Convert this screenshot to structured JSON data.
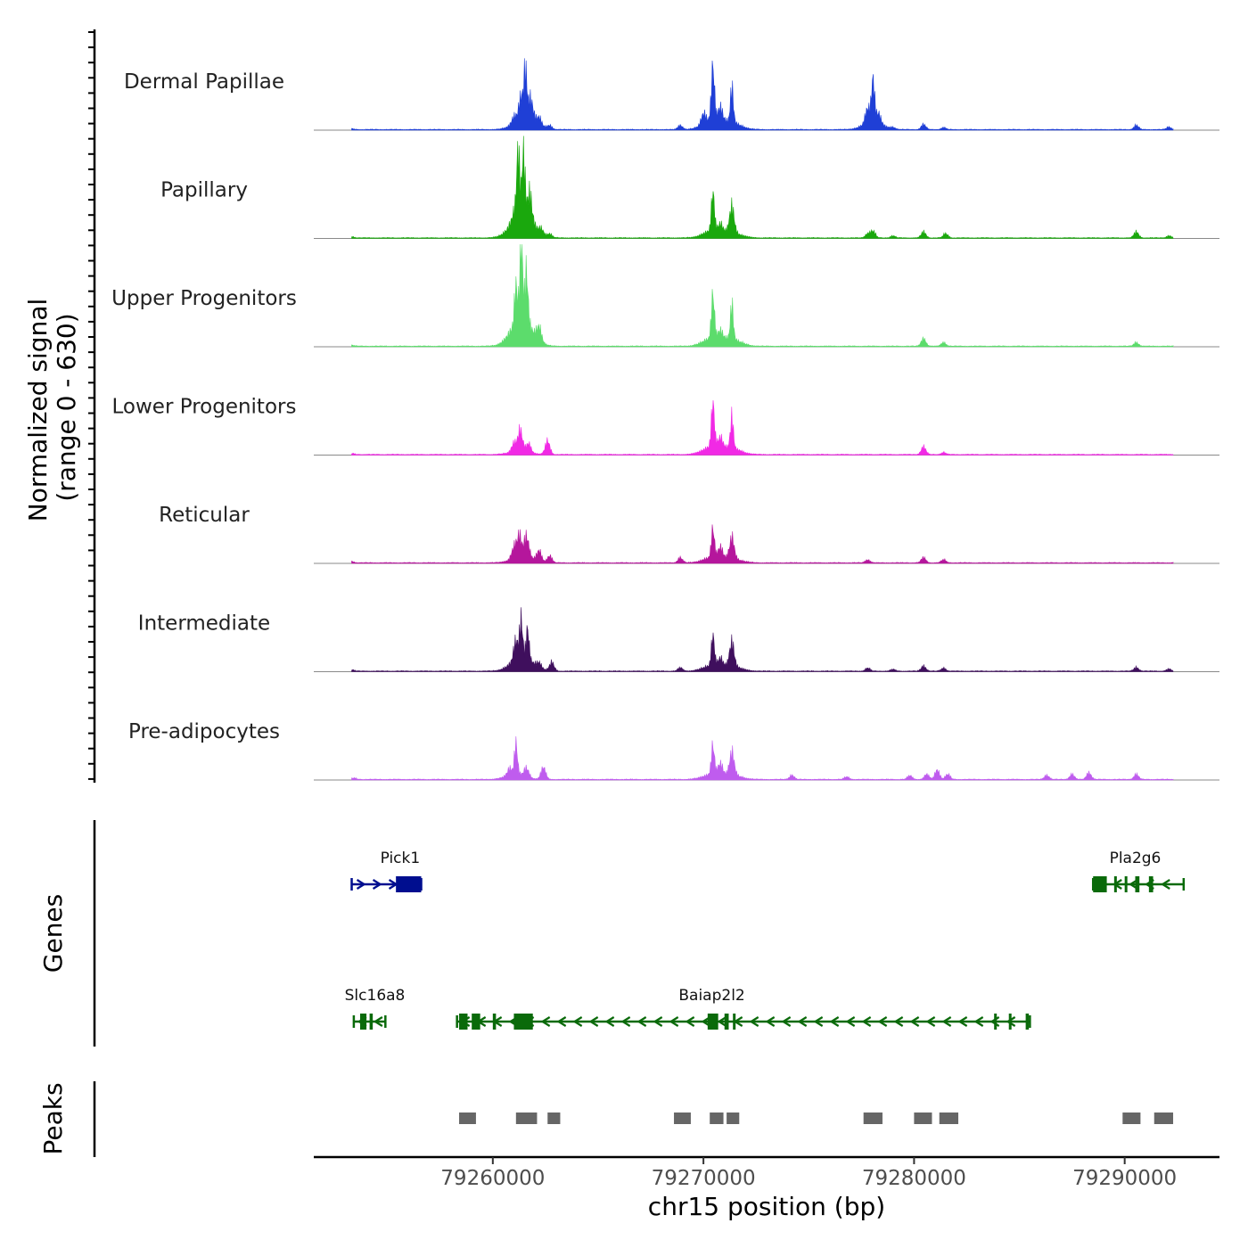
{
  "chart_data": {
    "type": "coverage-track",
    "chromosome": "chr15",
    "x_range": [
      79251500,
      79294500
    ],
    "xlabel": "chr15 position (bp)",
    "x_ticks": [
      79260000,
      79270000,
      79280000,
      79290000
    ],
    "x_tick_labels": [
      "79260000",
      "79270000",
      "79280000",
      "79290000"
    ],
    "signal_panel": {
      "ylabel_line1": "Normalized signal",
      "ylabel_line2": "(range 0 - 630)",
      "y_range": [
        0,
        630
      ]
    },
    "genes_label": "Genes",
    "peaks_label": "Peaks",
    "tracks": [
      {
        "name": "Dermal Papillae",
        "color": "#1f3fd6",
        "peaks": [
          [
            79253300,
            4
          ],
          [
            79261000,
            35
          ],
          [
            79261350,
            120
          ],
          [
            79261550,
            250
          ],
          [
            79261800,
            110
          ],
          [
            79262200,
            40
          ],
          [
            79262700,
            20
          ],
          [
            79268900,
            25
          ],
          [
            79270000,
            60
          ],
          [
            79270450,
            320
          ],
          [
            79270800,
            70
          ],
          [
            79271350,
            200
          ],
          [
            79277800,
            90
          ],
          [
            79278050,
            250
          ],
          [
            79278300,
            60
          ],
          [
            79279000,
            10
          ],
          [
            79280450,
            30
          ],
          [
            79281400,
            12
          ],
          [
            79290550,
            25
          ],
          [
            79292100,
            15
          ]
        ]
      },
      {
        "name": "Papillary",
        "color": "#1aa80d",
        "peaks": [
          [
            79253300,
            8
          ],
          [
            79261000,
            40
          ],
          [
            79261200,
            380
          ],
          [
            79261450,
            370
          ],
          [
            79261750,
            150
          ],
          [
            79262300,
            30
          ],
          [
            79262700,
            20
          ],
          [
            79270450,
            230
          ],
          [
            79270800,
            40
          ],
          [
            79271350,
            150
          ],
          [
            79277800,
            25
          ],
          [
            79278050,
            40
          ],
          [
            79279000,
            12
          ],
          [
            79280450,
            35
          ],
          [
            79281500,
            25
          ],
          [
            79290550,
            35
          ],
          [
            79292100,
            12
          ]
        ]
      },
      {
        "name": "Upper Progenitors",
        "color": "#5cdc6c",
        "peaks": [
          [
            79253300,
            6
          ],
          [
            79261100,
            220
          ],
          [
            79261350,
            460
          ],
          [
            79261600,
            300
          ],
          [
            79262200,
            80
          ],
          [
            79270450,
            260
          ],
          [
            79270800,
            40
          ],
          [
            79271350,
            200
          ],
          [
            79280450,
            45
          ],
          [
            79281400,
            22
          ],
          [
            79290550,
            22
          ]
        ]
      },
      {
        "name": "Lower Progenitors",
        "color": "#f129e5",
        "peaks": [
          [
            79253300,
            6
          ],
          [
            79261000,
            50
          ],
          [
            79261300,
            120
          ],
          [
            79261700,
            50
          ],
          [
            79262600,
            80
          ],
          [
            79270450,
            260
          ],
          [
            79270800,
            50
          ],
          [
            79271350,
            180
          ],
          [
            79280450,
            45
          ],
          [
            79281400,
            12
          ]
        ]
      },
      {
        "name": "Reticular",
        "color": "#b5169c",
        "peaks": [
          [
            79253300,
            8
          ],
          [
            79261000,
            60
          ],
          [
            79261250,
            120
          ],
          [
            79261600,
            120
          ],
          [
            79262200,
            60
          ],
          [
            79262700,
            40
          ],
          [
            79268900,
            30
          ],
          [
            79270450,
            170
          ],
          [
            79270800,
            60
          ],
          [
            79271350,
            120
          ],
          [
            79277800,
            18
          ],
          [
            79280450,
            30
          ],
          [
            79281400,
            18
          ]
        ]
      },
      {
        "name": "Intermediate",
        "color": "#3f0f5d",
        "peaks": [
          [
            79253300,
            8
          ],
          [
            79261100,
            110
          ],
          [
            79261350,
            220
          ],
          [
            79261650,
            180
          ],
          [
            79262200,
            30
          ],
          [
            79262800,
            50
          ],
          [
            79268900,
            20
          ],
          [
            79270450,
            180
          ],
          [
            79270800,
            40
          ],
          [
            79271350,
            140
          ],
          [
            79277800,
            18
          ],
          [
            79279000,
            10
          ],
          [
            79280450,
            30
          ],
          [
            79281400,
            18
          ],
          [
            79290550,
            22
          ],
          [
            79292100,
            12
          ]
        ]
      },
      {
        "name": "Pre-adipocytes",
        "color": "#bf5cee",
        "peaks": [
          [
            79253400,
            8
          ],
          [
            79260800,
            40
          ],
          [
            79261100,
            180
          ],
          [
            79261600,
            50
          ],
          [
            79262400,
            70
          ],
          [
            79270450,
            170
          ],
          [
            79270800,
            60
          ],
          [
            79271350,
            130
          ],
          [
            79274200,
            25
          ],
          [
            79276800,
            15
          ],
          [
            79279800,
            22
          ],
          [
            79280600,
            30
          ],
          [
            79281100,
            55
          ],
          [
            79281600,
            30
          ],
          [
            79286300,
            25
          ],
          [
            79287500,
            30
          ],
          [
            79288300,
            40
          ],
          [
            79290550,
            30
          ]
        ]
      }
    ],
    "genes": [
      {
        "name": "Pick1",
        "strand": "+",
        "color": "#000e8f",
        "row": 1,
        "start": 79253300,
        "end": 79256600,
        "exons": [
          [
            79255400,
            79256600
          ]
        ],
        "label_pos": 79255600
      },
      {
        "name": "Pla2g6",
        "strand": "-",
        "color": "#0a6a0a",
        "row": 1,
        "start": 79288500,
        "end": 79292800,
        "exons": [
          [
            79288500,
            79289150
          ],
          [
            79289500,
            79289600
          ],
          [
            79290000,
            79290100
          ],
          [
            79290500,
            79290700
          ],
          [
            79291150,
            79291350
          ]
        ],
        "label_pos": 79290500
      },
      {
        "name": "Slc16a8",
        "strand": "-",
        "color": "#0a6a0a",
        "row": 2,
        "start": 79253400,
        "end": 79254900,
        "exons": [
          [
            79253700,
            79254000
          ],
          [
            79254150,
            79254300
          ]
        ],
        "label_pos": 79254400
      },
      {
        "name": "Baiap2l2",
        "strand": "-",
        "color": "#0a6a0a",
        "row": 2,
        "start": 79258300,
        "end": 79285500,
        "exons": [
          [
            79258400,
            79258800
          ],
          [
            79259000,
            79259400
          ],
          [
            79260000,
            79260150
          ],
          [
            79261000,
            79261900
          ],
          [
            79270200,
            79270700
          ],
          [
            79271000,
            79271200
          ],
          [
            79271400,
            79271500
          ],
          [
            79283800,
            79283900
          ],
          [
            79284500,
            79284600
          ],
          [
            79285300,
            79285450
          ]
        ],
        "label_pos": 79270400
      }
    ],
    "peak_regions": [
      [
        79258400,
        79259200
      ],
      [
        79261100,
        79262100
      ],
      [
        79262600,
        79263200
      ],
      [
        79268600,
        79269400
      ],
      [
        79270300,
        79270950
      ],
      [
        79271100,
        79271700
      ],
      [
        79277600,
        79278500
      ],
      [
        79280000,
        79280850
      ],
      [
        79281200,
        79282100
      ],
      [
        79289900,
        79290750
      ],
      [
        79291400,
        79292300
      ]
    ]
  }
}
